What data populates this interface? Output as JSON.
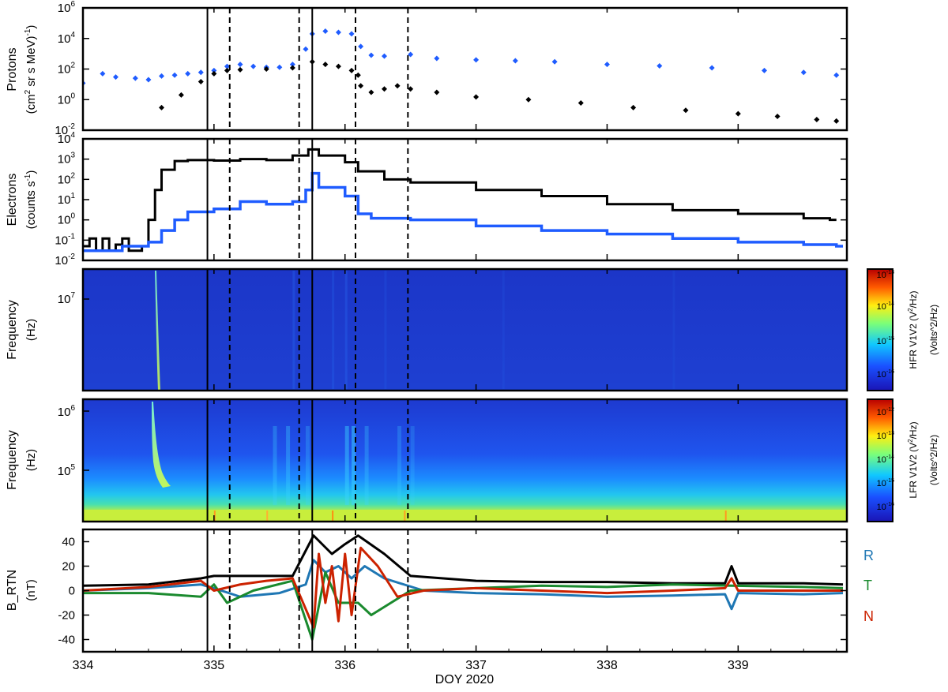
{
  "chart_data": [
    {
      "type": "scatter",
      "panel": "protons",
      "ylabel": "Protons",
      "ylabel_units_parts": [
        "(cm",
        "2",
        " sr s MeV)",
        "-1",
        ")"
      ],
      "ylabel_units_prefix": "(",
      "yscale": "log",
      "ylim": [
        0.01,
        1000000
      ],
      "yticks": [
        {
          "value": 0.01,
          "base": "10",
          "exp": "-2"
        },
        {
          "value": 1,
          "base": "10",
          "exp": "0"
        },
        {
          "value": 100,
          "base": "10",
          "exp": "2"
        },
        {
          "value": 10000,
          "base": "10",
          "exp": "4"
        },
        {
          "value": 1000000,
          "base": "10",
          "exp": "6"
        }
      ],
      "series": [
        {
          "color": "#1f5cff",
          "values": [
            [
              334.0,
              12
            ],
            [
              334.15,
              50
            ],
            [
              334.25,
              30
            ],
            [
              334.4,
              25
            ],
            [
              334.5,
              20
            ],
            [
              334.6,
              35
            ],
            [
              334.7,
              40
            ],
            [
              334.8,
              50
            ],
            [
              334.9,
              60
            ],
            [
              335.0,
              80
            ],
            [
              335.1,
              150
            ],
            [
              335.2,
              200
            ],
            [
              335.3,
              150
            ],
            [
              335.4,
              130
            ],
            [
              335.5,
              130
            ],
            [
              335.6,
              200
            ],
            [
              335.7,
              2000
            ],
            [
              335.75,
              20000
            ],
            [
              335.85,
              30000
            ],
            [
              335.95,
              25000
            ],
            [
              336.05,
              20000
            ],
            [
              336.12,
              3000
            ],
            [
              336.2,
              800
            ],
            [
              336.3,
              700
            ],
            [
              336.5,
              900
            ],
            [
              336.7,
              500
            ],
            [
              337.0,
              400
            ],
            [
              337.3,
              350
            ],
            [
              337.6,
              300
            ],
            [
              338.0,
              200
            ],
            [
              338.4,
              160
            ],
            [
              338.8,
              120
            ],
            [
              339.2,
              80
            ],
            [
              339.5,
              60
            ],
            [
              339.75,
              40
            ]
          ]
        },
        {
          "color": "#000000",
          "values": [
            [
              334.6,
              0.3
            ],
            [
              334.75,
              2
            ],
            [
              334.9,
              15
            ],
            [
              335.0,
              50
            ],
            [
              335.1,
              80
            ],
            [
              335.2,
              90
            ],
            [
              335.4,
              100
            ],
            [
              335.6,
              120
            ],
            [
              335.75,
              300
            ],
            [
              335.85,
              200
            ],
            [
              335.95,
              150
            ],
            [
              336.05,
              80
            ],
            [
              336.1,
              40
            ],
            [
              336.12,
              8
            ],
            [
              336.2,
              3
            ],
            [
              336.3,
              5
            ],
            [
              336.4,
              8
            ],
            [
              336.5,
              5
            ],
            [
              336.7,
              3
            ],
            [
              337.0,
              1.5
            ],
            [
              337.4,
              1
            ],
            [
              337.8,
              0.6
            ],
            [
              338.2,
              0.3
            ],
            [
              338.6,
              0.2
            ],
            [
              339.0,
              0.12
            ],
            [
              339.3,
              0.08
            ],
            [
              339.6,
              0.05
            ],
            [
              339.75,
              0.04
            ]
          ]
        }
      ]
    },
    {
      "type": "line",
      "step": true,
      "panel": "electrons",
      "ylabel": "Electrons",
      "ylabel_units_parts": [
        "(counts s",
        "-1",
        ")"
      ],
      "yscale": "log",
      "ylim": [
        0.01,
        10000
      ],
      "yticks": [
        {
          "value": 0.01,
          "base": "10",
          "exp": "-2"
        },
        {
          "value": 0.1,
          "base": "10",
          "exp": "-1"
        },
        {
          "value": 1,
          "base": "10",
          "exp": "0"
        },
        {
          "value": 10,
          "base": "10",
          "exp": "1"
        },
        {
          "value": 100,
          "base": "10",
          "exp": "2"
        },
        {
          "value": 1000,
          "base": "10",
          "exp": "3"
        },
        {
          "value": 10000,
          "base": "10",
          "exp": "4"
        }
      ],
      "series": [
        {
          "color": "#000000",
          "values": [
            [
              334.0,
              0.05
            ],
            [
              334.05,
              0.12
            ],
            [
              334.1,
              0.03
            ],
            [
              334.15,
              0.12
            ],
            [
              334.2,
              0.03
            ],
            [
              334.25,
              0.06
            ],
            [
              334.3,
              0.12
            ],
            [
              334.35,
              0.03
            ],
            [
              334.45,
              0.05
            ],
            [
              334.5,
              1
            ],
            [
              334.55,
              30
            ],
            [
              334.6,
              300
            ],
            [
              334.7,
              800
            ],
            [
              334.8,
              900
            ],
            [
              335.0,
              850
            ],
            [
              335.2,
              1000
            ],
            [
              335.4,
              900
            ],
            [
              335.6,
              1500
            ],
            [
              335.72,
              3000
            ],
            [
              335.8,
              1500
            ],
            [
              336.0,
              700
            ],
            [
              336.1,
              250
            ],
            [
              336.3,
              100
            ],
            [
              336.5,
              70
            ],
            [
              337.0,
              30
            ],
            [
              337.5,
              15
            ],
            [
              338.0,
              6
            ],
            [
              338.5,
              3
            ],
            [
              339.0,
              2
            ],
            [
              339.5,
              1.2
            ],
            [
              339.7,
              1
            ]
          ]
        },
        {
          "color": "#1f5cff",
          "values": [
            [
              334.0,
              0.03
            ],
            [
              334.3,
              0.05
            ],
            [
              334.5,
              0.08
            ],
            [
              334.6,
              0.3
            ],
            [
              334.7,
              1
            ],
            [
              334.8,
              2.5
            ],
            [
              335.0,
              3.5
            ],
            [
              335.2,
              8
            ],
            [
              335.4,
              6
            ],
            [
              335.6,
              8
            ],
            [
              335.7,
              30
            ],
            [
              335.75,
              200
            ],
            [
              335.8,
              40
            ],
            [
              336.0,
              15
            ],
            [
              336.1,
              2
            ],
            [
              336.2,
              1.2
            ],
            [
              336.5,
              1
            ],
            [
              337.0,
              0.5
            ],
            [
              337.5,
              0.3
            ],
            [
              338.0,
              0.2
            ],
            [
              338.5,
              0.12
            ],
            [
              339.0,
              0.08
            ],
            [
              339.5,
              0.06
            ],
            [
              339.75,
              0.05
            ]
          ]
        }
      ]
    },
    {
      "type": "heatmap",
      "panel": "hfr",
      "ylabel": "Frequency",
      "ylabel_units": "(Hz)",
      "ytick": {
        "base": "10",
        "exp": "7"
      },
      "colorbar_label_main": "HFR V1V2 (V",
      "colorbar_label_sup": "2",
      "colorbar_label_end": "/Hz)",
      "colorbar_units": "(Volts^2/Hz)",
      "colorbar_ticks": [
        {
          "base": "10",
          "exp": "-13"
        },
        {
          "base": "10",
          "exp": "-14"
        },
        {
          "base": "10",
          "exp": "-15"
        },
        {
          "base": "10",
          "exp": "-16"
        }
      ]
    },
    {
      "type": "heatmap",
      "panel": "lfr",
      "ylabel": "Frequency",
      "ylabel_units": "(Hz)",
      "yticks": [
        {
          "base": "10",
          "exp": "6"
        },
        {
          "base": "10",
          "exp": "5"
        }
      ],
      "colorbar_label_main": "LFR V1V2 (V",
      "colorbar_label_sup": "2",
      "colorbar_label_end": "/Hz)",
      "colorbar_units": "(Volts^2/Hz)",
      "colorbar_ticks": [
        {
          "base": "10",
          "exp": "-12"
        },
        {
          "base": "10",
          "exp": "-13"
        },
        {
          "base": "10",
          "exp": "-14"
        },
        {
          "base": "10",
          "exp": "-15"
        },
        {
          "base": "10",
          "exp": "-16"
        }
      ]
    },
    {
      "type": "line",
      "panel": "field",
      "ylabel": "B_RTN",
      "ylabel_units": "(nT)",
      "ylim": [
        -50,
        50
      ],
      "yticks": [
        "40",
        "20",
        "0",
        "-20",
        "-40"
      ],
      "yvalues": [
        40,
        20,
        0,
        -20,
        -40
      ],
      "series": [
        {
          "name": "R",
          "color": "#1f77b4",
          "values": [
            [
              334.0,
              0
            ],
            [
              334.5,
              2
            ],
            [
              334.9,
              5
            ],
            [
              335.0,
              2
            ],
            [
              335.2,
              -5
            ],
            [
              335.5,
              -2
            ],
            [
              335.7,
              5
            ],
            [
              335.76,
              25
            ],
            [
              335.85,
              15
            ],
            [
              335.95,
              20
            ],
            [
              336.05,
              10
            ],
            [
              336.15,
              20
            ],
            [
              336.3,
              10
            ],
            [
              336.45,
              5
            ],
            [
              336.6,
              0
            ],
            [
              337.0,
              -2
            ],
            [
              337.5,
              -3
            ],
            [
              338.0,
              -5
            ],
            [
              338.5,
              -4
            ],
            [
              338.9,
              -3
            ],
            [
              338.95,
              -15
            ],
            [
              339.0,
              -2
            ],
            [
              339.5,
              -3
            ],
            [
              339.8,
              -2
            ]
          ]
        },
        {
          "name": "T",
          "color": "#1a8a2e",
          "values": [
            [
              334.0,
              -2
            ],
            [
              334.5,
              -2
            ],
            [
              334.9,
              -5
            ],
            [
              335.0,
              5
            ],
            [
              335.1,
              -10
            ],
            [
              335.3,
              0
            ],
            [
              335.6,
              8
            ],
            [
              335.75,
              -40
            ],
            [
              335.85,
              15
            ],
            [
              335.95,
              -10
            ],
            [
              336.1,
              -10
            ],
            [
              336.2,
              -20
            ],
            [
              336.35,
              -10
            ],
            [
              336.5,
              0
            ],
            [
              337.0,
              2
            ],
            [
              337.5,
              4
            ],
            [
              338.0,
              3
            ],
            [
              338.5,
              5
            ],
            [
              338.95,
              4
            ],
            [
              339.5,
              3
            ],
            [
              339.8,
              2
            ]
          ]
        },
        {
          "name": "N",
          "color": "#cc2200",
          "values": [
            [
              334.0,
              0
            ],
            [
              334.5,
              3
            ],
            [
              334.9,
              8
            ],
            [
              335.0,
              0
            ],
            [
              335.2,
              5
            ],
            [
              335.4,
              8
            ],
            [
              335.6,
              10
            ],
            [
              335.76,
              -30
            ],
            [
              335.8,
              30
            ],
            [
              335.85,
              -10
            ],
            [
              335.9,
              20
            ],
            [
              335.95,
              -25
            ],
            [
              336.0,
              30
            ],
            [
              336.05,
              -20
            ],
            [
              336.12,
              35
            ],
            [
              336.25,
              20
            ],
            [
              336.4,
              -5
            ],
            [
              336.6,
              0
            ],
            [
              337.0,
              2
            ],
            [
              337.5,
              0
            ],
            [
              338.0,
              -2
            ],
            [
              338.5,
              0
            ],
            [
              338.9,
              2
            ],
            [
              338.95,
              10
            ],
            [
              339.0,
              0
            ],
            [
              339.5,
              0
            ],
            [
              339.8,
              0
            ]
          ]
        },
        {
          "name": "",
          "color": "#000000",
          "values": [
            [
              334.0,
              4
            ],
            [
              334.5,
              5
            ],
            [
              334.9,
              10
            ],
            [
              335.0,
              12
            ],
            [
              335.3,
              12
            ],
            [
              335.6,
              12
            ],
            [
              335.76,
              45
            ],
            [
              335.9,
              30
            ],
            [
              336.0,
              38
            ],
            [
              336.1,
              45
            ],
            [
              336.3,
              30
            ],
            [
              336.5,
              12
            ],
            [
              337.0,
              8
            ],
            [
              337.5,
              7
            ],
            [
              338.0,
              7
            ],
            [
              338.5,
              6
            ],
            [
              338.9,
              6
            ],
            [
              338.95,
              20
            ],
            [
              339.0,
              6
            ],
            [
              339.5,
              6
            ],
            [
              339.8,
              5
            ]
          ]
        }
      ]
    }
  ],
  "xaxis": {
    "label": "DOY 2020",
    "xlim": [
      334,
      339.83
    ],
    "ticks": [
      "334",
      "335",
      "336",
      "337",
      "338",
      "339"
    ],
    "tick_values": [
      334,
      335,
      336,
      337,
      338,
      339
    ]
  },
  "event_lines": {
    "solid": [
      334.95,
      335.75
    ],
    "dashed": [
      335.12,
      335.65,
      336.08,
      336.48
    ]
  },
  "colors": {
    "protons_blue": "#1f5cff",
    "electrons_blue": "#1f5cff",
    "spectrogram_background": "#1f3bc8"
  }
}
